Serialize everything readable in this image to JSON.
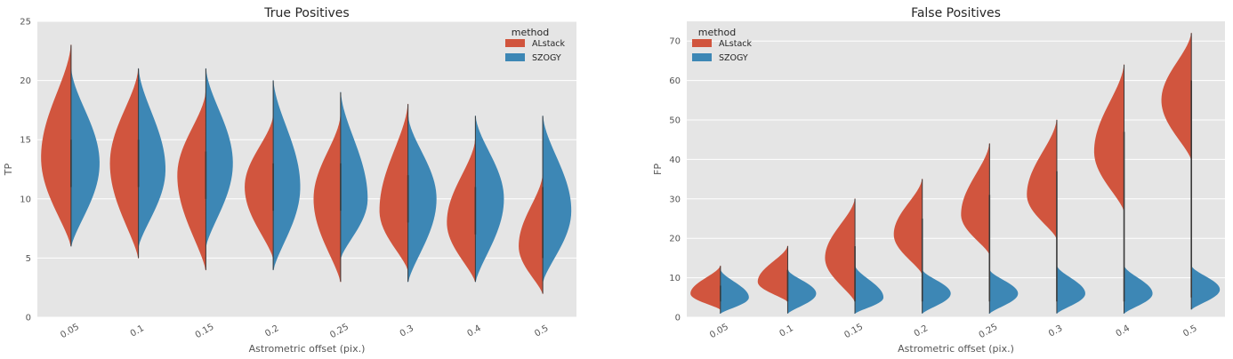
{
  "chart_data": [
    {
      "type": "violin",
      "title": "True Positives",
      "xlabel": "Astrometric offset (pix.)",
      "ylabel": "TP",
      "categories": [
        "0.05",
        "0.1",
        "0.15",
        "0.2",
        "0.25",
        "0.3",
        "0.4",
        "0.5"
      ],
      "ylim": [
        0,
        25
      ],
      "yticks": [
        0,
        5,
        10,
        15,
        20,
        25
      ],
      "grid": true,
      "legend": {
        "title": "method",
        "placement": "top-right"
      },
      "series": [
        {
          "name": "ALstack",
          "color": "#d1553e",
          "side": "left",
          "violins": [
            {
              "min": 6,
              "max": 23,
              "mode": 13.5,
              "q1": 11,
              "q3": 15,
              "width": 1.0
            },
            {
              "min": 5,
              "max": 21,
              "mode": 13,
              "q1": 11,
              "q3": 15,
              "width": 0.95
            },
            {
              "min": 4,
              "max": 19,
              "mode": 12,
              "q1": 10,
              "q3": 14,
              "width": 0.95
            },
            {
              "min": 5,
              "max": 17,
              "mode": 11,
              "q1": 9,
              "q3": 13,
              "width": 0.95
            },
            {
              "min": 3,
              "max": 17,
              "mode": 10,
              "q1": 9,
              "q3": 13,
              "width": 0.9
            },
            {
              "min": 4,
              "max": 18,
              "mode": 9,
              "q1": 8,
              "q3": 12,
              "width": 0.95
            },
            {
              "min": 3,
              "max": 15,
              "mode": 8,
              "q1": 7,
              "q3": 11,
              "width": 0.95
            },
            {
              "min": 2,
              "max": 12,
              "mode": 6,
              "q1": 5,
              "q3": 8,
              "width": 0.8
            }
          ]
        },
        {
          "name": "SZOGY",
          "color": "#3d87b5",
          "side": "right",
          "violins": [
            {
              "min": 6,
              "max": 21,
              "mode": 13,
              "q1": 11,
              "q3": 15,
              "width": 0.95
            },
            {
              "min": 6,
              "max": 21,
              "mode": 12.5,
              "q1": 11,
              "q3": 15,
              "width": 0.9
            },
            {
              "min": 6,
              "max": 21,
              "mode": 13,
              "q1": 10,
              "q3": 14,
              "width": 0.9
            },
            {
              "min": 4,
              "max": 20,
              "mode": 11,
              "q1": 9,
              "q3": 13,
              "width": 0.9
            },
            {
              "min": 5,
              "max": 19,
              "mode": 10,
              "q1": 9,
              "q3": 13,
              "width": 0.9
            },
            {
              "min": 3,
              "max": 17,
              "mode": 10,
              "q1": 8,
              "q3": 12,
              "width": 0.95
            },
            {
              "min": 3,
              "max": 17,
              "mode": 10,
              "q1": 7,
              "q3": 11,
              "width": 0.95
            },
            {
              "min": 3,
              "max": 17,
              "mode": 9,
              "q1": 7,
              "q3": 11,
              "width": 0.95
            }
          ]
        }
      ]
    },
    {
      "type": "violin",
      "title": "False Positives",
      "xlabel": "Astrometric offset (pix.)",
      "ylabel": "FP",
      "categories": [
        "0.05",
        "0.1",
        "0.15",
        "0.2",
        "0.25",
        "0.3",
        "0.4",
        "0.5"
      ],
      "ylim": [
        0,
        75
      ],
      "yticks": [
        0,
        10,
        20,
        30,
        40,
        50,
        60,
        70
      ],
      "grid": true,
      "legend": {
        "title": "method",
        "placement": "top-left"
      },
      "series": [
        {
          "name": "ALstack",
          "color": "#d1553e",
          "side": "left",
          "violins": [
            {
              "min": 2,
              "max": 13,
              "mode": 6,
              "q1": 4,
              "q3": 8,
              "width": 1.0
            },
            {
              "min": 4,
              "max": 18,
              "mode": 9,
              "q1": 7,
              "q3": 12,
              "width": 1.0
            },
            {
              "min": 4,
              "max": 30,
              "mode": 15,
              "q1": 11,
              "q3": 18,
              "width": 1.0
            },
            {
              "min": 11,
              "max": 35,
              "mode": 21,
              "q1": 18,
              "q3": 25,
              "width": 0.95
            },
            {
              "min": 16,
              "max": 44,
              "mode": 26,
              "q1": 23,
              "q3": 31,
              "width": 0.95
            },
            {
              "min": 20,
              "max": 50,
              "mode": 31,
              "q1": 28,
              "q3": 37,
              "width": 1.0
            },
            {
              "min": 27,
              "max": 64,
              "mode": 42,
              "q1": 37,
              "q3": 47,
              "width": 1.0
            },
            {
              "min": 40,
              "max": 72,
              "mode": 55,
              "q1": 50,
              "q3": 60,
              "width": 1.0
            }
          ]
        },
        {
          "name": "SZOGY",
          "color": "#3d87b5",
          "side": "right",
          "violins": [
            {
              "min": 1,
              "max": 12,
              "mode": 5,
              "q1": 4,
              "q3": 7,
              "width": 0.95
            },
            {
              "min": 1,
              "max": 12,
              "mode": 6,
              "q1": 4,
              "q3": 7,
              "width": 0.95
            },
            {
              "min": 1,
              "max": 13,
              "mode": 5,
              "q1": 4,
              "q3": 7,
              "width": 0.95
            },
            {
              "min": 1,
              "max": 12,
              "mode": 6,
              "q1": 4,
              "q3": 8,
              "width": 0.95
            },
            {
              "min": 1,
              "max": 12,
              "mode": 6,
              "q1": 4,
              "q3": 8,
              "width": 0.95
            },
            {
              "min": 1,
              "max": 13,
              "mode": 6,
              "q1": 4,
              "q3": 8,
              "width": 0.95
            },
            {
              "min": 1,
              "max": 13,
              "mode": 6,
              "q1": 4,
              "q3": 8,
              "width": 0.95
            },
            {
              "min": 2,
              "max": 13,
              "mode": 7,
              "q1": 5,
              "q3": 9,
              "width": 0.95
            }
          ]
        }
      ]
    }
  ]
}
